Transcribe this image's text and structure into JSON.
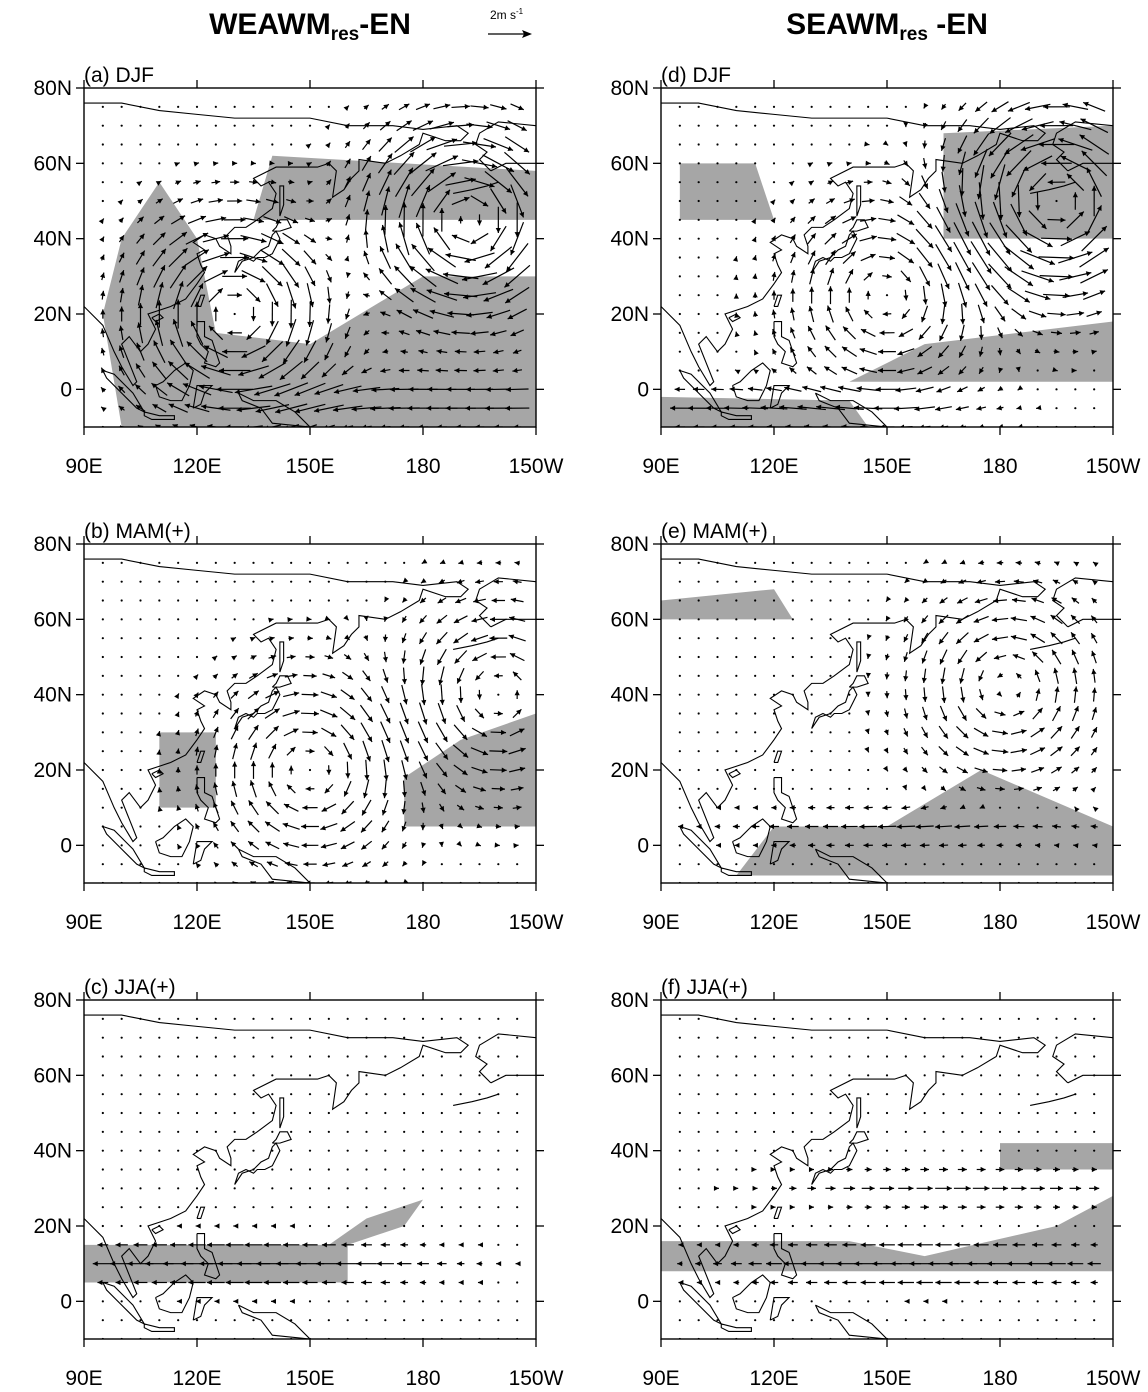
{
  "columns": [
    {
      "title_main": "WEAWM",
      "title_sub": "res",
      "title_tail": "-EN"
    },
    {
      "title_main": "SEAWM",
      "title_sub": "res",
      "title_tail": " -EN"
    }
  ],
  "reference_vector": {
    "label": "2m s",
    "exponent": "-1",
    "magnitude": 2
  },
  "axes": {
    "lon_range": [
      90,
      210
    ],
    "lat_range": [
      -10,
      80
    ],
    "lon_ticks": [
      90,
      120,
      150,
      180,
      210
    ],
    "lon_labels": [
      "90E",
      "120E",
      "150E",
      "180",
      "150W"
    ],
    "lat_ticks": [
      80,
      60,
      40,
      20,
      0
    ],
    "lat_labels": [
      "80N",
      "60N",
      "40N",
      "20N",
      "0"
    ]
  },
  "panels": [
    {
      "id": "a",
      "label": "(a) DJF"
    },
    {
      "id": "b",
      "label": "(b) MAM(+)"
    },
    {
      "id": "c",
      "label": "(c) JJA(+)"
    },
    {
      "id": "d",
      "label": "(d) DJF"
    },
    {
      "id": "e",
      "label": "(e) MAM(+)"
    },
    {
      "id": "f",
      "label": "(f) JJA(+)"
    }
  ],
  "map_features": {
    "vector_grid_spacing_deg": 5,
    "shading": "significant regions (grey)",
    "shading_color": "#a6a6a6",
    "coastline": true
  },
  "anomaly_centers": {
    "a": [
      {
        "type": "anticyclone",
        "lon": 192,
        "lat": 45,
        "strength": 3.2
      },
      {
        "type": "anticyclone",
        "lon": 130,
        "lat": 20,
        "strength": 2.6
      },
      {
        "type": "easterly",
        "lon": 180,
        "lat": -3,
        "strength": 2.4
      }
    ],
    "b": [
      {
        "type": "anticyclone",
        "lon": 150,
        "lat": 20,
        "strength": 1.6
      },
      {
        "type": "cyclone",
        "lon": 200,
        "lat": 40,
        "strength": 1.6
      }
    ],
    "c": [
      {
        "type": "easterly",
        "lon": 130,
        "lat": 10,
        "strength": 2.4
      }
    ],
    "d": [
      {
        "type": "cyclone",
        "lon": 195,
        "lat": 50,
        "strength": 3.2
      },
      {
        "type": "anticyclone",
        "lon": 150,
        "lat": 25,
        "strength": 1.6
      },
      {
        "type": "easterly",
        "lon": 120,
        "lat": -5,
        "strength": 1.8
      }
    ],
    "e": [
      {
        "type": "cyclone",
        "lon": 182,
        "lat": 42,
        "strength": 1.5
      },
      {
        "type": "easterly",
        "lon": 160,
        "lat": 5,
        "strength": 1.4
      }
    ],
    "f": [
      {
        "type": "easterly",
        "lon": 160,
        "lat": 10,
        "strength": 2.2
      },
      {
        "type": "westerly",
        "lon": 170,
        "lat": 30,
        "strength": 1.2
      }
    ]
  },
  "significance_regions": {
    "a": [
      [
        [
          100,
          -10
        ],
        [
          210,
          -10
        ],
        [
          210,
          30
        ],
        [
          180,
          30
        ],
        [
          150,
          12
        ],
        [
          125,
          15
        ],
        [
          120,
          40
        ],
        [
          110,
          55
        ],
        [
          100,
          40
        ],
        [
          95,
          20
        ]
      ],
      [
        [
          135,
          45
        ],
        [
          210,
          45
        ],
        [
          210,
          58
        ],
        [
          140,
          62
        ]
      ]
    ],
    "b": [
      [
        [
          175,
          5
        ],
        [
          210,
          5
        ],
        [
          210,
          35
        ],
        [
          190,
          28
        ],
        [
          175,
          18
        ]
      ],
      [
        [
          110,
          10
        ],
        [
          125,
          10
        ],
        [
          125,
          30
        ],
        [
          110,
          30
        ]
      ]
    ],
    "c": [
      [
        [
          90,
          5
        ],
        [
          160,
          5
        ],
        [
          160,
          15
        ],
        [
          175,
          20
        ],
        [
          180,
          27
        ],
        [
          165,
          22
        ],
        [
          155,
          15
        ],
        [
          90,
          15
        ]
      ]
    ],
    "d": [
      [
        [
          165,
          40
        ],
        [
          210,
          40
        ],
        [
          210,
          70
        ],
        [
          165,
          68
        ]
      ],
      [
        [
          140,
          2
        ],
        [
          210,
          2
        ],
        [
          210,
          18
        ],
        [
          160,
          12
        ]
      ],
      [
        [
          90,
          -10
        ],
        [
          145,
          -10
        ],
        [
          140,
          -3
        ],
        [
          90,
          -2
        ]
      ],
      [
        [
          95,
          45
        ],
        [
          120,
          45
        ],
        [
          115,
          60
        ],
        [
          95,
          60
        ]
      ]
    ],
    "e": [
      [
        [
          110,
          -8
        ],
        [
          210,
          -8
        ],
        [
          210,
          5
        ],
        [
          175,
          20
        ],
        [
          150,
          5
        ],
        [
          120,
          5
        ]
      ],
      [
        [
          90,
          60
        ],
        [
          125,
          60
        ],
        [
          120,
          68
        ],
        [
          90,
          65
        ]
      ]
    ],
    "f": [
      [
        [
          90,
          8
        ],
        [
          210,
          8
        ],
        [
          210,
          28
        ],
        [
          195,
          20
        ],
        [
          160,
          12
        ],
        [
          140,
          16
        ],
        [
          90,
          16
        ]
      ],
      [
        [
          180,
          35
        ],
        [
          210,
          35
        ],
        [
          210,
          42
        ],
        [
          180,
          42
        ]
      ]
    ]
  }
}
